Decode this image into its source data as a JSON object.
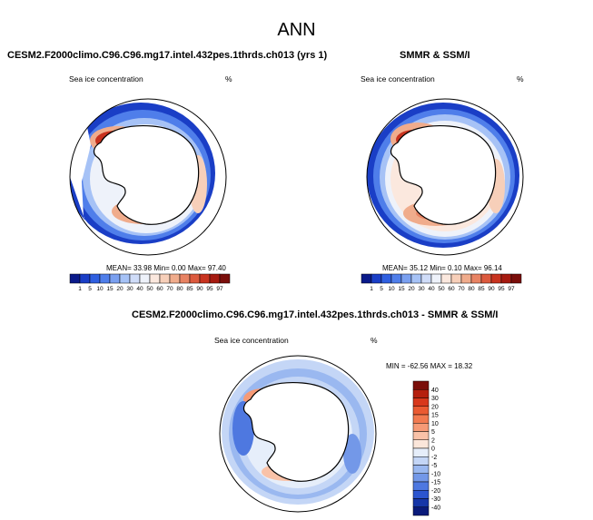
{
  "figure_title": "ANN",
  "panels": [
    {
      "title": "CESM2.F2000climo.C96.C96.mg17.intel.432pes.1thrds.ch013 (yrs 1)",
      "variable": "Sea ice concentration",
      "units": "%",
      "stats": "MEAN= 33.98  Min=  0.00  Max= 97.40"
    },
    {
      "title": "SMMR & SSM/I",
      "variable": "Sea ice concentration",
      "units": "%",
      "stats": "MEAN= 35.12  Min=  0.10  Max= 96.14"
    },
    {
      "title": "CESM2.F2000climo.C96.C96.mg17.intel.432pes.1thrds.ch013 - SMMR & SSM/I",
      "variable": "Sea ice concentration",
      "units": "%",
      "stats": "MIN = -62.56 MAX =  18.32"
    }
  ],
  "chart_data": [
    {
      "type": "heatmap",
      "projection": "south-polar-stereographic",
      "title": "CESM2.F2000climo.C96.C96.mg17.intel.432pes.1thrds.ch013 (yrs 1)",
      "variable": "Sea ice concentration",
      "units": "%",
      "mean": 33.98,
      "min": 0.0,
      "max": 97.4,
      "colorbar_levels": [
        "1",
        "5",
        "10",
        "15",
        "20",
        "30",
        "40",
        "50",
        "60",
        "70",
        "80",
        "85",
        "90",
        "95",
        "97"
      ],
      "colorbar_colors": [
        "#0a1a8a",
        "#1a3ec6",
        "#2f5fe0",
        "#4f7eea",
        "#7aa0f0",
        "#a6c2f6",
        "#cfdcf8",
        "#eef2fa",
        "#fbe8de",
        "#f7cfb9",
        "#f0ac8c",
        "#e88363",
        "#dc5a3e",
        "#c8331f",
        "#a61a10",
        "#7a0e0a"
      ]
    },
    {
      "type": "heatmap",
      "projection": "south-polar-stereographic",
      "title": "SMMR & SSM/I",
      "variable": "Sea ice concentration",
      "units": "%",
      "mean": 35.12,
      "min": 0.1,
      "max": 96.14,
      "colorbar_levels": [
        "1",
        "5",
        "10",
        "15",
        "20",
        "30",
        "40",
        "50",
        "60",
        "70",
        "80",
        "85",
        "90",
        "95",
        "97"
      ],
      "colorbar_colors": [
        "#0a1a8a",
        "#1a3ec6",
        "#2f5fe0",
        "#4f7eea",
        "#7aa0f0",
        "#a6c2f6",
        "#cfdcf8",
        "#eef2fa",
        "#fbe8de",
        "#f7cfb9",
        "#f0ac8c",
        "#e88363",
        "#dc5a3e",
        "#c8331f",
        "#a61a10",
        "#7a0e0a"
      ]
    },
    {
      "type": "heatmap",
      "projection": "south-polar-stereographic",
      "title": "CESM2.F2000climo.C96.C96.mg17.intel.432pes.1thrds.ch013 - SMMR & SSM/I",
      "variable": "Sea ice concentration",
      "units": "%",
      "min": -62.56,
      "max": 18.32,
      "colorbar_levels": [
        "40",
        "30",
        "20",
        "15",
        "10",
        "5",
        "2",
        "0",
        "-2",
        "-5",
        "-10",
        "-15",
        "-20",
        "-30",
        "-40"
      ],
      "colorbar_colors": [
        "#7a0e0a",
        "#b5200f",
        "#d8381c",
        "#ea5a32",
        "#f27a50",
        "#f69a76",
        "#f9c2a8",
        "#fbe6da",
        "#e6eefa",
        "#c4d6f6",
        "#9ab8f0",
        "#7398e8",
        "#4e78e0",
        "#2c55cf",
        "#1636a8",
        "#0a1a7a"
      ]
    }
  ]
}
